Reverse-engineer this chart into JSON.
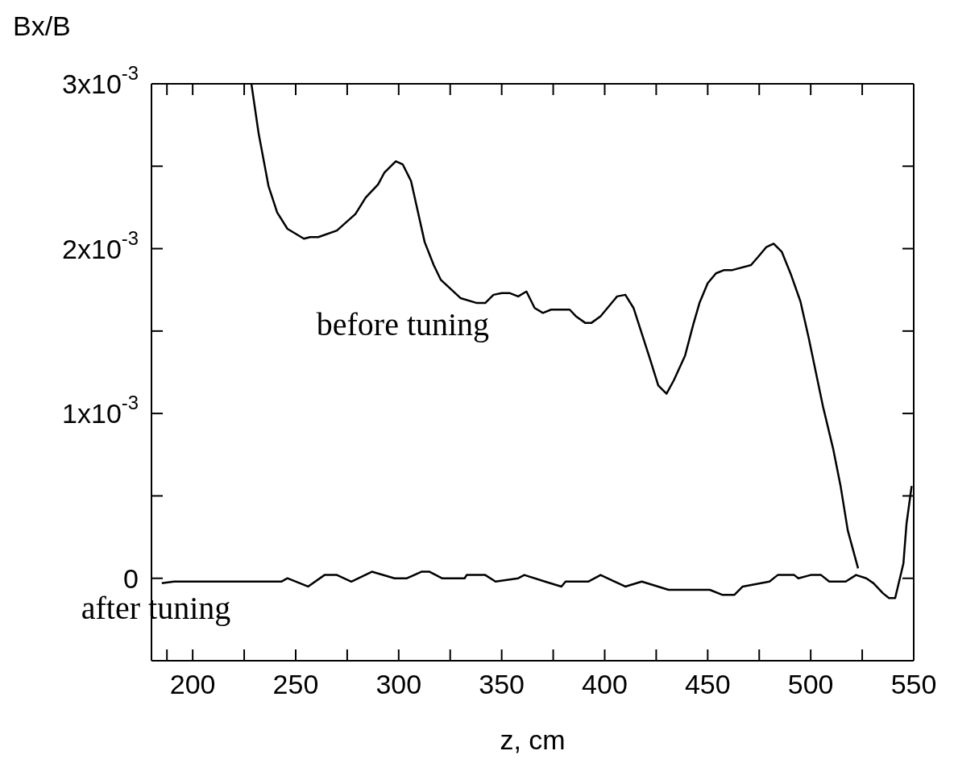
{
  "chart_data": {
    "type": "line",
    "xlabel": "z, cm",
    "ylabel": "Bx/B",
    "marker": "none",
    "line_style": "solid",
    "xlim": [
      180,
      550
    ],
    "ylim": [
      -0.0005,
      0.003
    ],
    "xticks": [
      {
        "value": 187.5,
        "label": null
      },
      200,
      {
        "value": 225,
        "label": null
      },
      250,
      {
        "value": 275,
        "label": null
      },
      300,
      {
        "value": 325,
        "label": null
      },
      350,
      {
        "value": 375,
        "label": null
      },
      400,
      {
        "value": 425,
        "label": null
      },
      450,
      {
        "value": 475,
        "label": null
      },
      500,
      {
        "value": 525,
        "label": null
      },
      550
    ],
    "yticks": [
      {
        "value": -0.0005,
        "label": null
      },
      0,
      {
        "value": 0.0005,
        "label": null
      },
      {
        "value": 0.001,
        "label": "1x10$^{-3}$"
      },
      {
        "value": 0.0015,
        "label": null
      },
      {
        "value": 0.002,
        "label": "2x10$^{-3}$"
      },
      {
        "value": 0.0025,
        "label": null
      },
      {
        "value": 0.003,
        "label": "3x10$^{-3}$"
      }
    ],
    "series": [
      {
        "name": "before tuning",
        "color": "#000000",
        "x": [
          228.5,
          232,
          236.8,
          241,
          246,
          254,
          257,
          261,
          270,
          279,
          284,
          290,
          293,
          298.6,
          302,
          306,
          312.6,
          317,
          320.5,
          330,
          338,
          342,
          346,
          350,
          354,
          358,
          362,
          366,
          370,
          374,
          383,
          386,
          390.5,
          393.6,
          398,
          406,
          410,
          414,
          422,
          426,
          430,
          433.5,
          439,
          443,
          446,
          450,
          454,
          458,
          462,
          471,
          474.5,
          478.5,
          482,
          486,
          490.5,
          495,
          499,
          506,
          511,
          514.5,
          518,
          523
        ],
        "values": [
          0.003,
          0.0027,
          0.00238,
          0.00222,
          0.00212,
          0.00206,
          0.00207,
          0.00207,
          0.00211,
          0.00221,
          0.00231,
          0.00239,
          0.00246,
          0.00253,
          0.00251,
          0.00241,
          0.00204,
          0.0019,
          0.00181,
          0.0017,
          0.00167,
          0.00167,
          0.00172,
          0.00173,
          0.00173,
          0.00171,
          0.00174,
          0.00164,
          0.00161,
          0.00163,
          0.00163,
          0.00159,
          0.00155,
          0.00155,
          0.00159,
          0.00171,
          0.00172,
          0.00164,
          0.00133,
          0.00117,
          0.00112,
          0.0012,
          0.00135,
          0.00154,
          0.00167,
          0.00179,
          0.00185,
          0.00187,
          0.00187,
          0.0019,
          0.00195,
          0.00201,
          0.00203,
          0.00198,
          0.00184,
          0.00168,
          0.00146,
          0.00104,
          0.00078,
          0.00056,
          0.00029,
          6e-05
        ]
      },
      {
        "name": "after tuning",
        "color": "#000000",
        "x": [
          185,
          191,
          243,
          246,
          256,
          264,
          270,
          277,
          287,
          298,
          304,
          311,
          315,
          321,
          332,
          333,
          342,
          347,
          358,
          361,
          371,
          379,
          381,
          392,
          398,
          410,
          418,
          431,
          451,
          457,
          463,
          467,
          480,
          484,
          492,
          494,
          500,
          505,
          509,
          517,
          522,
          527,
          530.5,
          535,
          538,
          541,
          545,
          546.5,
          549
        ],
        "values": [
          -3e-05,
          -2e-05,
          -2e-05,
          0,
          -5e-05,
          2e-05,
          2e-05,
          -2e-05,
          4e-05,
          0,
          0,
          4e-05,
          4e-05,
          0,
          0,
          2e-05,
          2e-05,
          -2e-05,
          0,
          2e-05,
          -2e-05,
          -5e-05,
          -2e-05,
          -2e-05,
          2e-05,
          -5e-05,
          -2e-05,
          -7e-05,
          -7e-05,
          -0.0001,
          -0.0001,
          -5e-05,
          -2e-05,
          2e-05,
          2e-05,
          0,
          2e-05,
          2e-05,
          -2e-05,
          -2e-05,
          2e-05,
          0,
          -3e-05,
          -9e-05,
          -0.00012,
          -0.00012,
          9e-05,
          0.00033,
          0.00056
        ]
      }
    ]
  }
}
